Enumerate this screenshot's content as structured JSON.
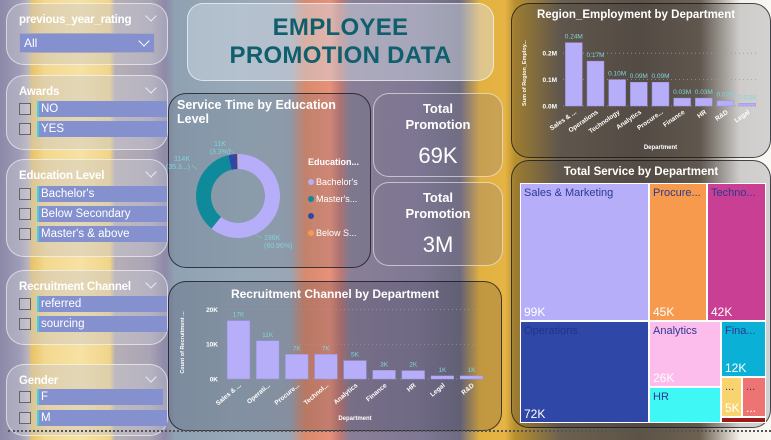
{
  "header": {
    "title_line1": "EMPLOYEE",
    "title_line2": "PROMOTION DATA"
  },
  "slicers": {
    "previous_year_rating": {
      "title": "previous_year_rating",
      "selected": "All"
    },
    "awards": {
      "title": "Awards",
      "options": [
        "NO",
        "YES"
      ]
    },
    "education": {
      "title": "Education Level",
      "options": [
        "Bachelor's",
        "Below Secondary",
        "Master's & above"
      ]
    },
    "recruitment": {
      "title": "Recruitment Channel",
      "options": [
        "referred",
        "sourcing"
      ]
    },
    "gender": {
      "title": "Gender",
      "options": [
        "F",
        "M"
      ]
    }
  },
  "kpis": [
    {
      "label_line1": "Total",
      "label_line2": "Promotion",
      "value": "69K"
    },
    {
      "label_line1": "Total",
      "label_line2": "Promotion",
      "value": "3M"
    }
  ],
  "colors": {
    "bar": "#b7aefa",
    "teal": "#0f8a9a",
    "navy": "#2f47a6",
    "orange": "#f79a4d",
    "label_teal": "#7fd3dc"
  },
  "chart_data": [
    {
      "id": "service-time-donut",
      "type": "pie",
      "title": "Service Time by Education Level",
      "legend_title": "Education...",
      "legend_position": "right",
      "slices": [
        {
          "label": "Bachelor's",
          "legend": "Bachelor's",
          "value": 196000,
          "display": "196K",
          "percent": "(60.96%)",
          "color": "#b7aefa"
        },
        {
          "label": "Master's & above",
          "legend": "Master's...",
          "value": 114000,
          "display": "114K",
          "percent": "(35.3...)",
          "color": "#0f8a9a"
        },
        {
          "label": "",
          "legend": "",
          "value": 11000,
          "display": "11K",
          "percent": "(3.3%)",
          "color": "#2f47a6"
        },
        {
          "label": "Below Secondary",
          "legend": "Below S...",
          "value": 1000,
          "display": "",
          "percent": "",
          "color": "#f79a4d"
        }
      ]
    },
    {
      "id": "region-employment",
      "type": "bar",
      "title": "Region_Employment by Department",
      "xlabel": "Department",
      "ylabel": "Sum of Region_Employ...",
      "ylim": [
        0,
        0.25
      ],
      "yticks": [
        "0.0M",
        "0.1M",
        "0.2M"
      ],
      "ytick_values": [
        0,
        0.1,
        0.2
      ],
      "categories": [
        "Sales & ...",
        "Operations",
        "Technology",
        "Analytics",
        "Procure...",
        "Finance",
        "HR",
        "R&D",
        "Legal"
      ],
      "values": [
        0.24,
        0.17,
        0.1,
        0.09,
        0.09,
        0.03,
        0.03,
        0.02,
        0.01
      ],
      "labels": [
        "0.24M",
        "0.17M",
        "0.10M",
        "0.09M",
        "0.09M",
        "0.03M",
        "0.03M",
        "0.02M",
        "0.01M"
      ]
    },
    {
      "id": "recruitment-by-dept",
      "type": "bar",
      "title": "Recruitment Channel by Department",
      "xlabel": "Department",
      "ylabel": "Count of Recruitment ...",
      "ylim": [
        0,
        21000
      ],
      "yticks": [
        "0K",
        "10K",
        "20K"
      ],
      "ytick_values": [
        0,
        10000,
        20000
      ],
      "categories": [
        "Sales & ...",
        "Operati...",
        "Procure...",
        "Technol...",
        "Analytics",
        "Finance",
        "HR",
        "Legal",
        "R&D"
      ],
      "values": [
        16800,
        11000,
        7100,
        7100,
        5300,
        2500,
        2400,
        900,
        900
      ],
      "labels": [
        "17K",
        "11K",
        "7K",
        "7K",
        "5K",
        "3K",
        "2K",
        "1K",
        "1K"
      ]
    },
    {
      "id": "total-service-treemap",
      "type": "treemap",
      "title": "Total Service by Department",
      "items": [
        {
          "name": "Sales & Marketing",
          "value": "99K",
          "color": "#b7aefa"
        },
        {
          "name": "Procure...",
          "value": "45K",
          "color": "#f79a4d"
        },
        {
          "name": "Techno...",
          "value": "42K",
          "color": "#c93f93"
        },
        {
          "name": "Operations",
          "value": "72K",
          "color": "#2f47a6"
        },
        {
          "name": "Analytics",
          "value": "26K",
          "color": "#fcbcec"
        },
        {
          "name": "Fina...",
          "value": "12K",
          "color": "#0bb0d6"
        },
        {
          "name": "HR",
          "value": "",
          "color": "#3ff7f5"
        },
        {
          "name": "...",
          "value": "5K",
          "color": "#f9d46e"
        },
        {
          "name": "...",
          "value": "...",
          "color": "#ee7373"
        },
        {
          "name": "",
          "value": "",
          "color": "#a01818"
        }
      ]
    }
  ]
}
